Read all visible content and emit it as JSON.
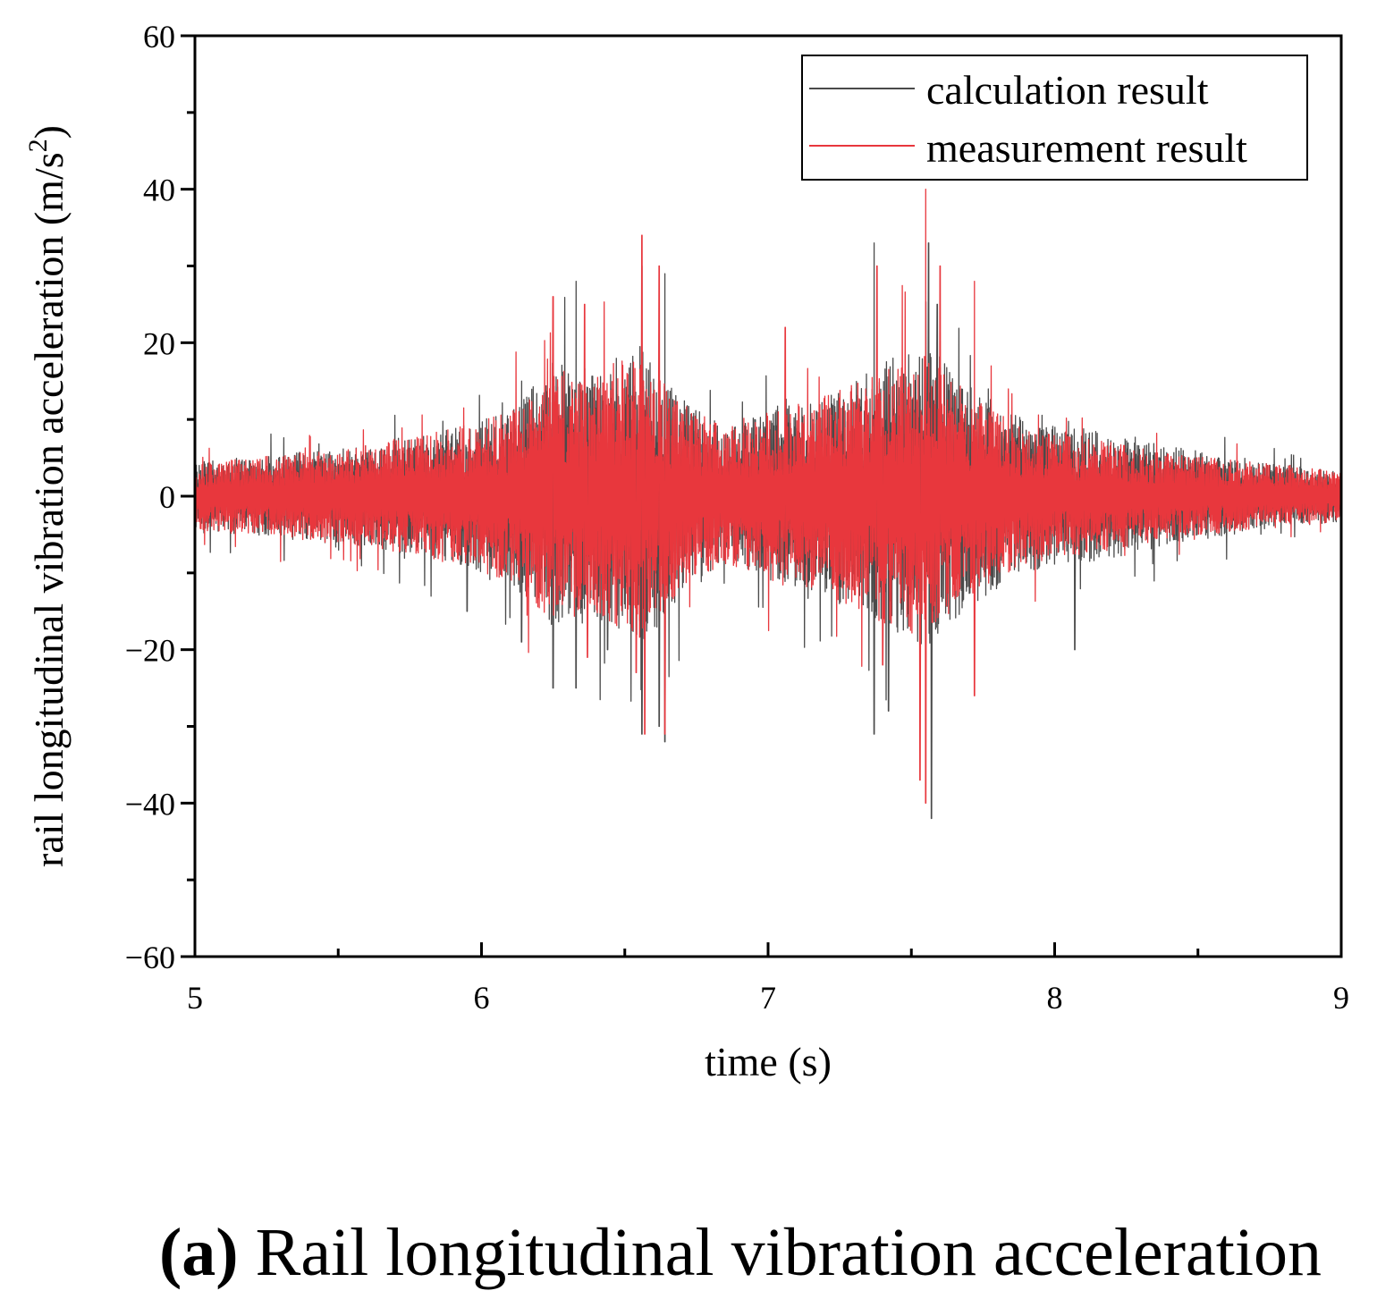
{
  "chart_data": {
    "type": "line",
    "title": "",
    "xlabel": "time (s)",
    "ylabel_main": "rail longitudinal vibration acceleration (m/s",
    "ylabel_sup": "2",
    "ylabel_end": ")",
    "xlim": [
      5,
      9
    ],
    "ylim": [
      -60,
      60
    ],
    "x_ticks": [
      5,
      6,
      7,
      8,
      9
    ],
    "x_tick_labels": [
      "5",
      "6",
      "7",
      "8",
      "9"
    ],
    "y_ticks": [
      -60,
      -40,
      -20,
      0,
      20,
      40,
      60
    ],
    "y_tick_labels": [
      "−60",
      "−40",
      "−20",
      "0",
      "20",
      "40",
      "60"
    ],
    "legend_position": "top-right",
    "series": [
      {
        "name": "calculation result",
        "color": "#4a4a4a",
        "envelope": [
          [
            5.0,
            4
          ],
          [
            5.3,
            5
          ],
          [
            5.6,
            6
          ],
          [
            5.9,
            8
          ],
          [
            6.1,
            10
          ],
          [
            6.25,
            16
          ],
          [
            6.4,
            15
          ],
          [
            6.55,
            18
          ],
          [
            6.7,
            12
          ],
          [
            6.85,
            8
          ],
          [
            7.0,
            10
          ],
          [
            7.2,
            12
          ],
          [
            7.4,
            16
          ],
          [
            7.55,
            18
          ],
          [
            7.7,
            13
          ],
          [
            7.9,
            9
          ],
          [
            8.1,
            8
          ],
          [
            8.4,
            6
          ],
          [
            8.7,
            4
          ],
          [
            9.0,
            3
          ]
        ],
        "peaks": [
          [
            6.14,
            15
          ],
          [
            6.14,
            -19
          ],
          [
            6.25,
            -25
          ],
          [
            6.33,
            28
          ],
          [
            6.33,
            -25
          ],
          [
            6.44,
            -20
          ],
          [
            6.56,
            30
          ],
          [
            6.56,
            -31
          ],
          [
            6.62,
            -30
          ],
          [
            6.64,
            29
          ],
          [
            6.64,
            -32
          ],
          [
            7.37,
            33
          ],
          [
            7.37,
            -31
          ],
          [
            7.42,
            -28
          ],
          [
            7.56,
            33
          ],
          [
            7.57,
            -42
          ],
          [
            7.59,
            25
          ],
          [
            8.07,
            -20
          ],
          [
            5.95,
            -15
          ]
        ]
      },
      {
        "name": "measurement result",
        "color": "#e8373d",
        "envelope": [
          [
            5.0,
            4
          ],
          [
            5.3,
            5
          ],
          [
            5.6,
            6
          ],
          [
            5.9,
            8
          ],
          [
            6.1,
            10
          ],
          [
            6.25,
            15
          ],
          [
            6.4,
            14
          ],
          [
            6.55,
            17
          ],
          [
            6.7,
            11
          ],
          [
            6.85,
            8
          ],
          [
            7.0,
            10
          ],
          [
            7.2,
            12
          ],
          [
            7.4,
            15
          ],
          [
            7.55,
            17
          ],
          [
            7.7,
            12
          ],
          [
            7.9,
            8
          ],
          [
            8.1,
            7
          ],
          [
            8.4,
            5
          ],
          [
            8.7,
            4
          ],
          [
            9.0,
            3
          ]
        ],
        "peaks": [
          [
            6.25,
            26
          ],
          [
            6.36,
            25
          ],
          [
            6.37,
            -21
          ],
          [
            6.54,
            -23
          ],
          [
            6.56,
            34
          ],
          [
            6.57,
            -31
          ],
          [
            6.62,
            30
          ],
          [
            6.64,
            -31
          ],
          [
            7.38,
            30
          ],
          [
            7.4,
            -22
          ],
          [
            7.55,
            40
          ],
          [
            7.53,
            -37
          ],
          [
            7.55,
            -40
          ],
          [
            7.6,
            30
          ],
          [
            7.72,
            28
          ],
          [
            7.72,
            -26
          ],
          [
            7.06,
            22
          ]
        ]
      }
    ]
  },
  "caption": {
    "label": "(a)",
    "text": "Rail longitudinal vibration acceleration"
  }
}
